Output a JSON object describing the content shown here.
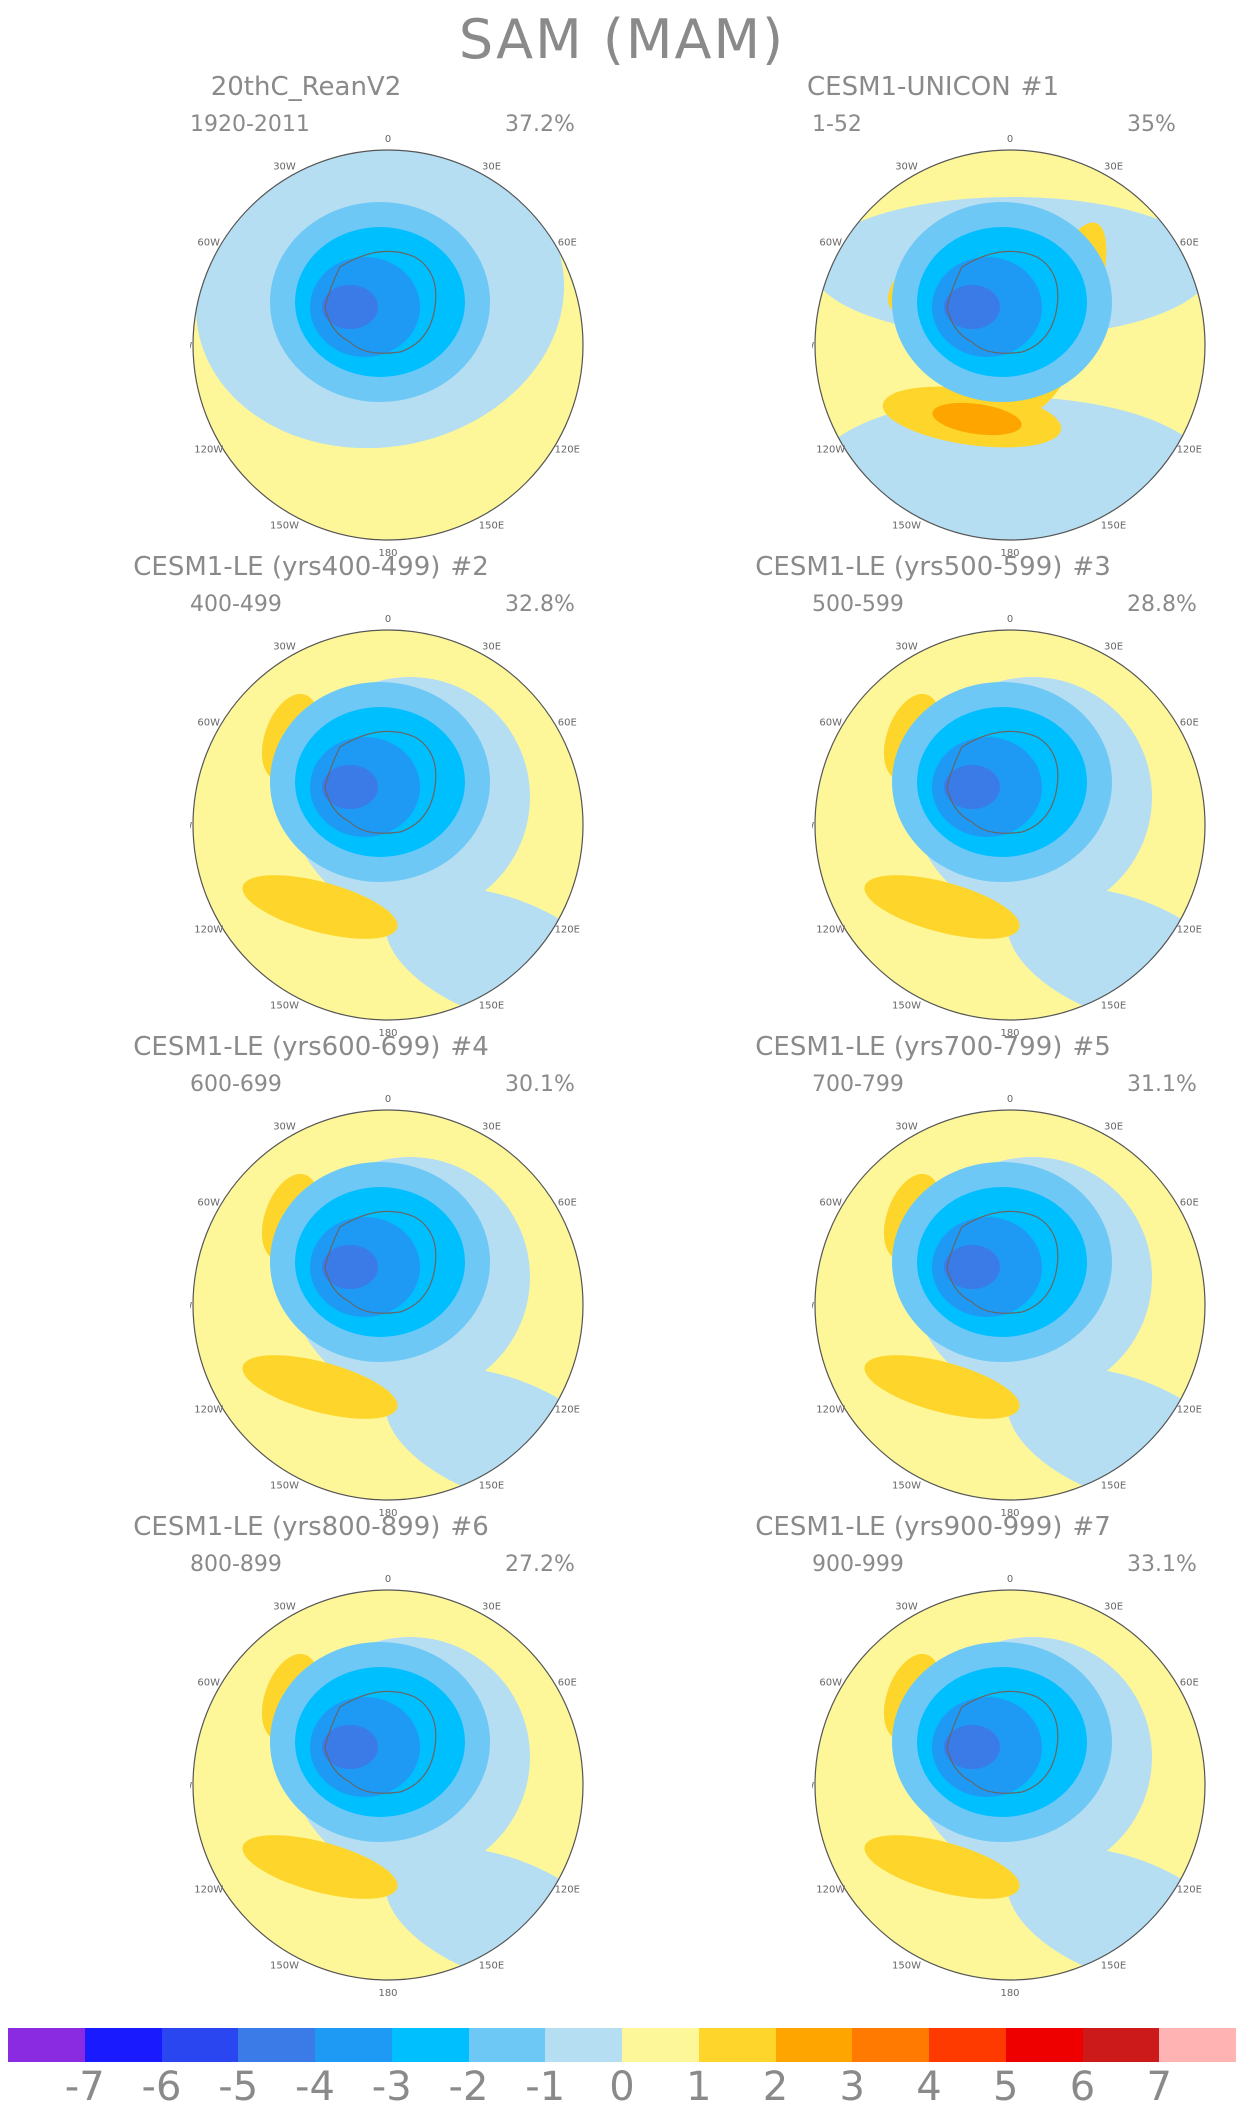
{
  "figure": {
    "title": "SAM (MAM)"
  },
  "panels": [
    {
      "title": "20thC_ReanV2",
      "tag": "",
      "period": "1920-2011",
      "variance": "37.2%"
    },
    {
      "title": "CESM1-UNICON",
      "tag": "#1",
      "period": "1-52",
      "variance": "35%"
    },
    {
      "title": "CESM1-LE (yrs400-499)",
      "tag": "#2",
      "period": "400-499",
      "variance": "32.8%"
    },
    {
      "title": "CESM1-LE (yrs500-599)",
      "tag": "#3",
      "period": "500-599",
      "variance": "28.8%"
    },
    {
      "title": "CESM1-LE (yrs600-699)",
      "tag": "#4",
      "period": "600-699",
      "variance": "30.1%"
    },
    {
      "title": "CESM1-LE (yrs700-799)",
      "tag": "#5",
      "period": "700-799",
      "variance": "31.1%"
    },
    {
      "title": "CESM1-LE (yrs800-899)",
      "tag": "#6",
      "period": "800-899",
      "variance": "27.2%"
    },
    {
      "title": "CESM1-LE (yrs900-999)",
      "tag": "#7",
      "period": "900-999",
      "variance": "33.1%"
    }
  ],
  "longitude_labels": [
    "0",
    "30E",
    "60E",
    "90E",
    "120E",
    "150E",
    "180",
    "150W",
    "120W",
    "90W",
    "60W",
    "30W"
  ],
  "colorbar": {
    "labels": [
      "-7",
      "-6",
      "-5",
      "-4",
      "-3",
      "-2",
      "-1",
      "0",
      "1",
      "2",
      "3",
      "4",
      "5",
      "6",
      "7"
    ],
    "colors": [
      "#8a2be2",
      "#1a1aff",
      "#2a46f0",
      "#3a7be8",
      "#1e9af5",
      "#00bfff",
      "#6ec8f5",
      "#b5def3",
      "#fdf79a",
      "#fdd52b",
      "#ffa500",
      "#ff7a00",
      "#ff3a00",
      "#ee0000",
      "#cc1a1a",
      "#ffb3b3"
    ]
  }
}
